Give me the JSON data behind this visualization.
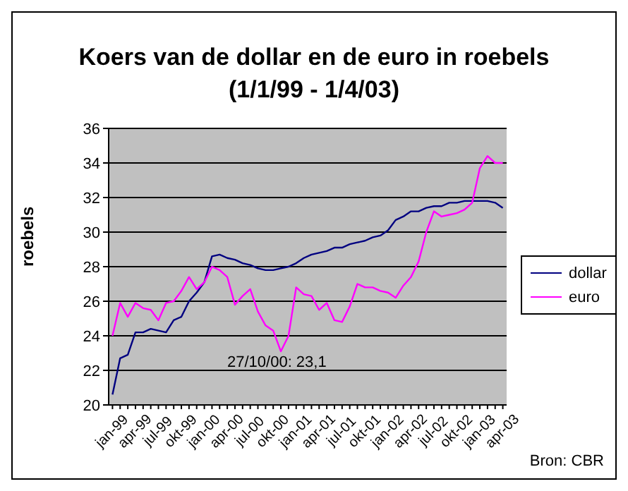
{
  "chart_data": {
    "type": "line",
    "title": "Koers van de dollar en de euro in roebels",
    "subtitle": "(1/1/99 - 1/4/03)",
    "ylabel": "roebels",
    "categories": [
      "jan-99",
      null,
      null,
      "apr-99",
      null,
      null,
      "jul-99",
      null,
      null,
      "okt-99",
      null,
      null,
      "jan-00",
      null,
      null,
      "apr-00",
      null,
      null,
      "jul-00",
      null,
      null,
      "okt-00",
      null,
      null,
      "jan-01",
      null,
      null,
      "apr-01",
      null,
      null,
      "jul-01",
      null,
      null,
      "okt-01",
      null,
      null,
      "jan-02",
      null,
      null,
      "apr-02",
      null,
      null,
      "jul-02",
      null,
      null,
      "okt-02",
      null,
      null,
      "jan-03",
      null,
      null,
      "apr-03"
    ],
    "series": [
      {
        "name": "dollar",
        "color": "#000080",
        "values": [
          20.6,
          22.7,
          22.9,
          24.2,
          24.2,
          24.4,
          24.3,
          24.2,
          24.9,
          25.1,
          26.0,
          26.5,
          27.1,
          28.6,
          28.7,
          28.5,
          28.4,
          28.2,
          28.1,
          27.9,
          27.8,
          27.8,
          27.9,
          28.0,
          28.2,
          28.5,
          28.7,
          28.8,
          28.9,
          29.1,
          29.1,
          29.3,
          29.4,
          29.5,
          29.7,
          29.8,
          30.1,
          30.7,
          30.9,
          31.2,
          31.2,
          31.4,
          31.5,
          31.5,
          31.7,
          31.7,
          31.8,
          31.8,
          31.8,
          31.8,
          31.7,
          31.4
        ]
      },
      {
        "name": "euro",
        "color": "#ff00ff",
        "values": [
          24.0,
          25.9,
          25.1,
          25.9,
          25.6,
          25.5,
          24.9,
          25.9,
          26.0,
          26.6,
          27.4,
          26.7,
          27.1,
          28.0,
          27.8,
          27.4,
          25.8,
          26.3,
          26.7,
          25.4,
          24.6,
          24.3,
          23.1,
          24.0,
          26.8,
          26.4,
          26.3,
          25.5,
          25.9,
          24.9,
          24.8,
          25.7,
          27.0,
          26.8,
          26.8,
          26.6,
          26.5,
          26.2,
          26.9,
          27.4,
          28.3,
          30.0,
          31.2,
          30.9,
          31.0,
          31.1,
          31.3,
          31.7,
          33.7,
          34.4,
          34.0,
          34.0
        ]
      }
    ],
    "ylim": [
      20,
      36
    ],
    "yticks": [
      20,
      22,
      24,
      26,
      28,
      30,
      32,
      34,
      36
    ],
    "grid": "y",
    "legend": "right",
    "marker": "none",
    "line_style": "solid",
    "annotations": [
      "27/10/00: 23,1",
      "Bron: CBR"
    ]
  }
}
